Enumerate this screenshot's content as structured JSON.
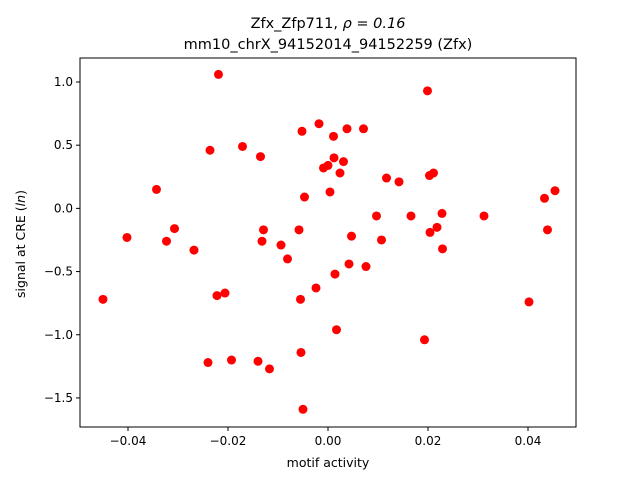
{
  "chart_data": {
    "type": "scatter",
    "title_line1_name": "Zfx_Zfp711, ",
    "title_line1_rho": "ρ = 0.16",
    "title_line2": "mm10_chrX_94152014_94152259 (Zfx)",
    "xlabel": "motif activity",
    "ylabel_prefix": "signal at CRE (",
    "ylabel_symbol": "ln",
    "ylabel_suffix": ")",
    "xlim": [
      -0.0496,
      0.0496
    ],
    "ylim": [
      -1.73,
      1.19
    ],
    "xticks": [
      -0.04,
      -0.02,
      0.0,
      0.02,
      0.04
    ],
    "xtick_labels": [
      "−0.04",
      "−0.02",
      "0.00",
      "0.02",
      "0.04"
    ],
    "yticks": [
      -1.5,
      -1.0,
      -0.5,
      0.0,
      0.5,
      1.0
    ],
    "ytick_labels": [
      "−1.5",
      "−1.0",
      "−0.5",
      "0.0",
      "0.5",
      "1.0"
    ],
    "marker_color": "#ff0000",
    "grid": false,
    "points": [
      {
        "x": -0.045,
        "y": -0.72
      },
      {
        "x": -0.0402,
        "y": -0.23
      },
      {
        "x": -0.0343,
        "y": 0.15
      },
      {
        "x": -0.0323,
        "y": -0.26
      },
      {
        "x": -0.0307,
        "y": -0.16
      },
      {
        "x": -0.0268,
        "y": -0.33
      },
      {
        "x": -0.024,
        "y": -1.22
      },
      {
        "x": -0.0236,
        "y": 0.46
      },
      {
        "x": -0.0222,
        "y": -0.69
      },
      {
        "x": -0.0219,
        "y": 1.06
      },
      {
        "x": -0.0206,
        "y": -0.67
      },
      {
        "x": -0.0193,
        "y": -1.2
      },
      {
        "x": -0.0171,
        "y": 0.49
      },
      {
        "x": -0.014,
        "y": -1.21
      },
      {
        "x": -0.0135,
        "y": 0.41
      },
      {
        "x": -0.0132,
        "y": -0.26
      },
      {
        "x": -0.0129,
        "y": -0.17
      },
      {
        "x": -0.0117,
        "y": -1.27
      },
      {
        "x": -0.0094,
        "y": -0.29
      },
      {
        "x": -0.0081,
        "y": -0.4
      },
      {
        "x": -0.0058,
        "y": -0.17
      },
      {
        "x": -0.0055,
        "y": -0.72
      },
      {
        "x": -0.0054,
        "y": -1.14
      },
      {
        "x": -0.0052,
        "y": 0.61
      },
      {
        "x": -0.005,
        "y": -1.59
      },
      {
        "x": -0.0047,
        "y": 0.09
      },
      {
        "x": -0.0024,
        "y": -0.63
      },
      {
        "x": -0.0018,
        "y": 0.67
      },
      {
        "x": -0.0009,
        "y": 0.32
      },
      {
        "x": 0.0,
        "y": 0.34
      },
      {
        "x": 0.0004,
        "y": 0.13
      },
      {
        "x": 0.0011,
        "y": 0.57
      },
      {
        "x": 0.0012,
        "y": 0.4
      },
      {
        "x": 0.0014,
        "y": -0.52
      },
      {
        "x": 0.0017,
        "y": -0.96
      },
      {
        "x": 0.0024,
        "y": 0.28
      },
      {
        "x": 0.0031,
        "y": 0.37
      },
      {
        "x": 0.0038,
        "y": 0.63
      },
      {
        "x": 0.0042,
        "y": -0.44
      },
      {
        "x": 0.0047,
        "y": -0.22
      },
      {
        "x": 0.0071,
        "y": 0.63
      },
      {
        "x": 0.0076,
        "y": -0.46
      },
      {
        "x": 0.0097,
        "y": -0.06
      },
      {
        "x": 0.0107,
        "y": -0.25
      },
      {
        "x": 0.0117,
        "y": 0.24
      },
      {
        "x": 0.0142,
        "y": 0.21
      },
      {
        "x": 0.0166,
        "y": -0.06
      },
      {
        "x": 0.0193,
        "y": -1.04
      },
      {
        "x": 0.0199,
        "y": 0.93
      },
      {
        "x": 0.0203,
        "y": 0.26
      },
      {
        "x": 0.0204,
        "y": -0.19
      },
      {
        "x": 0.0211,
        "y": 0.28
      },
      {
        "x": 0.0218,
        "y": -0.15
      },
      {
        "x": 0.0228,
        "y": -0.04
      },
      {
        "x": 0.0229,
        "y": -0.32
      },
      {
        "x": 0.0312,
        "y": -0.06
      },
      {
        "x": 0.0402,
        "y": -0.74
      },
      {
        "x": 0.0433,
        "y": 0.08
      },
      {
        "x": 0.0439,
        "y": -0.17
      },
      {
        "x": 0.0454,
        "y": 0.14
      }
    ]
  }
}
